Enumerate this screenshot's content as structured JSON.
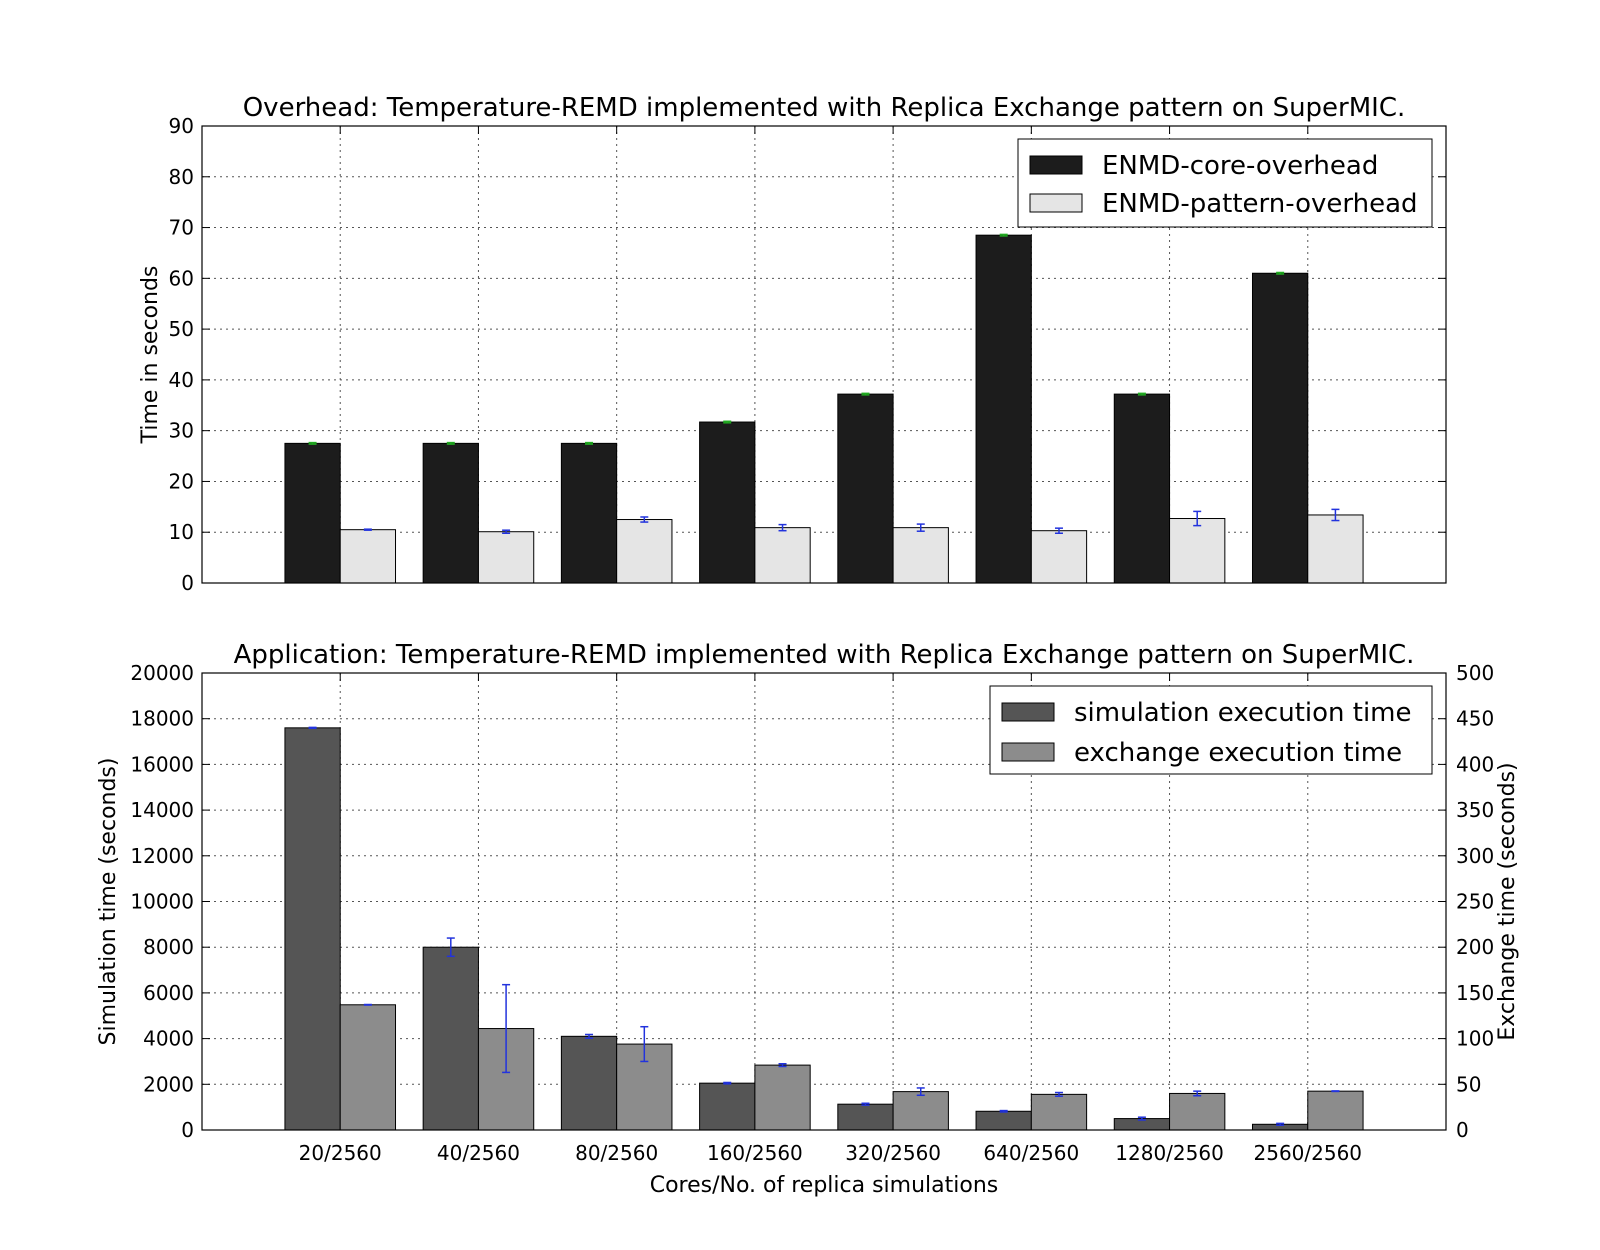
{
  "chart_data": [
    {
      "type": "bar",
      "title": "Overhead: Temperature-REMD implemented with Replica Exchange pattern on SuperMIC.",
      "ylabel": "Time in seconds",
      "xlabel": "",
      "ylim": [
        0,
        90
      ],
      "yticks": [
        0,
        10,
        20,
        30,
        40,
        50,
        60,
        70,
        80,
        90
      ],
      "categories": [
        "20/2560",
        "40/2560",
        "80/2560",
        "160/2560",
        "320/2560",
        "640/2560",
        "1280/2560",
        "2560/2560"
      ],
      "show_category_labels": false,
      "grid": true,
      "legend_position": "top-right",
      "series": [
        {
          "name": "ENMD-core-overhead",
          "color": "#1c1c1c",
          "errcolor": "#22aa22",
          "values": [
            27.5,
            27.5,
            27.5,
            31.7,
            37.2,
            68.5,
            37.2,
            61.0
          ],
          "errors": [
            0.15,
            0.15,
            0.15,
            0.15,
            0.15,
            0.15,
            0.15,
            0.15
          ]
        },
        {
          "name": "ENMD-pattern-overhead",
          "color": "#e5e5e5",
          "errcolor": "#2233dd",
          "values": [
            10.5,
            10.1,
            12.5,
            10.9,
            10.9,
            10.3,
            12.7,
            13.4
          ],
          "errors": [
            0.1,
            0.3,
            0.5,
            0.6,
            0.7,
            0.5,
            1.4,
            1.1
          ]
        }
      ]
    },
    {
      "type": "bar",
      "title": "Application: Temperature-REMD implemented with Replica Exchange pattern on SuperMIC.",
      "ylabel": "Simulation time (seconds)",
      "y2label": "Exchange time (seconds)",
      "xlabel": "Cores/No. of replica simulations",
      "ylim": [
        0,
        20000
      ],
      "y2lim": [
        0,
        500
      ],
      "yticks": [
        0,
        2000,
        4000,
        6000,
        8000,
        10000,
        12000,
        14000,
        16000,
        18000,
        20000
      ],
      "y2ticks": [
        0,
        50,
        100,
        150,
        200,
        250,
        300,
        350,
        400,
        450,
        500
      ],
      "categories": [
        "20/2560",
        "40/2560",
        "80/2560",
        "160/2560",
        "320/2560",
        "640/2560",
        "1280/2560",
        "2560/2560"
      ],
      "show_category_labels": true,
      "grid": true,
      "legend_position": "top-right",
      "series": [
        {
          "name": "simulation execution time",
          "axis": "left",
          "color": "#555555",
          "errcolor": "#2233dd",
          "values": [
            17600,
            8000,
            4100,
            2050,
            1130,
            820,
            500,
            250
          ],
          "errors": [
            20,
            400,
            80,
            30,
            40,
            30,
            60,
            40
          ]
        },
        {
          "name": "exchange execution time",
          "axis": "right",
          "color": "#8c8c8c",
          "errcolor": "#2233dd",
          "values": [
            137,
            111,
            94,
            71,
            42,
            39,
            40,
            42.5
          ],
          "errors": [
            0.3,
            48,
            19,
            1.5,
            4,
            2,
            2.5,
            0.3
          ]
        }
      ]
    }
  ]
}
